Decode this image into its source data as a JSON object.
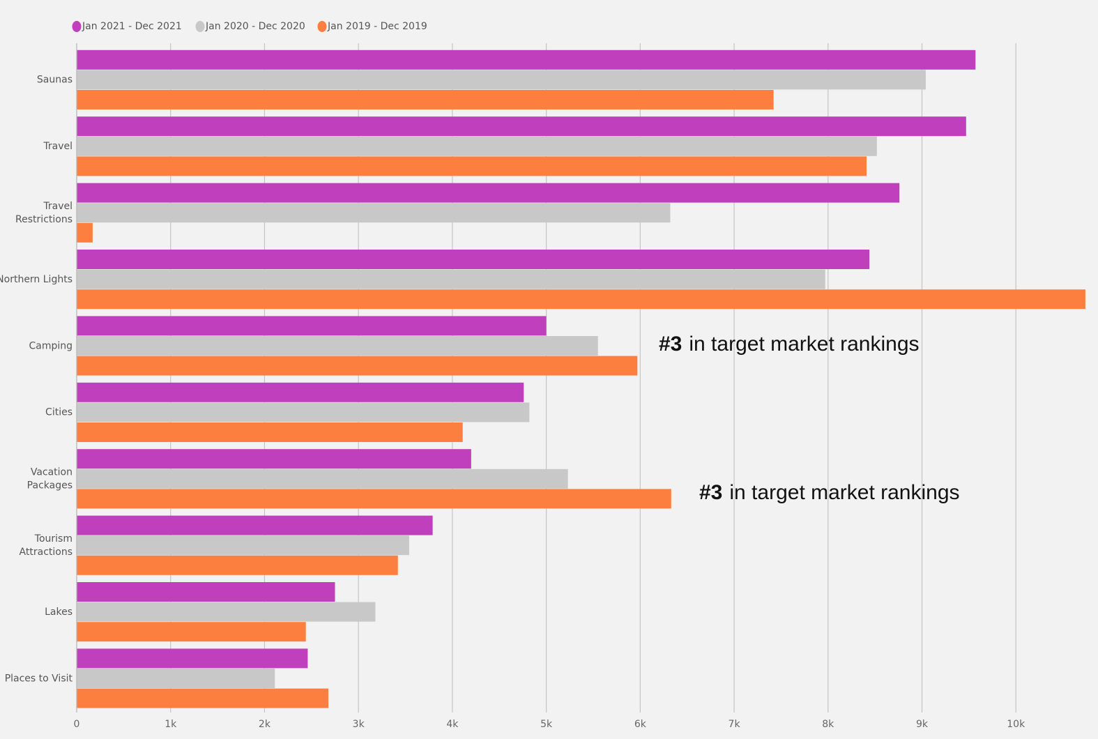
{
  "chart_data": {
    "type": "barh",
    "categories": [
      "Saunas",
      "Travel",
      "Travel\nRestrictions",
      "Northern Lights",
      "Camping",
      "Cities",
      "Vacation\nPackages",
      "Tourism\nAttractions",
      "Lakes",
      "Places to Visit"
    ],
    "series": [
      {
        "name": "Jan 2021 - Dec 2021",
        "color": "#c03fbc",
        "values": [
          9570,
          9470,
          8760,
          8440,
          5000,
          4760,
          4200,
          3790,
          2750,
          2460
        ]
      },
      {
        "name": "Jan 2020 - Dec 2020",
        "color": "#c8c8c8",
        "values": [
          9040,
          8520,
          6320,
          7970,
          5550,
          4820,
          5230,
          3540,
          3180,
          2110
        ]
      },
      {
        "name": "Jan 2019 - Dec 2019",
        "color": "#fd7f3f",
        "values": [
          7420,
          8410,
          170,
          10740,
          5970,
          4110,
          6330,
          3420,
          2440,
          2680
        ]
      }
    ],
    "xlim": [
      0,
      10800
    ],
    "xticks": [
      0,
      {
        "value": 1000,
        "label": "1k"
      },
      {
        "value": 2000,
        "label": "2k"
      },
      {
        "value": 3000,
        "label": "3k"
      },
      {
        "value": 4000,
        "label": "4k"
      },
      {
        "value": 5000,
        "label": "5k"
      },
      {
        "value": 6000,
        "label": "6k"
      },
      {
        "value": 7000,
        "label": "7k"
      },
      {
        "value": 8000,
        "label": "8k"
      },
      {
        "value": 9000,
        "label": "9k"
      },
      {
        "value": 10000,
        "label": "10k"
      }
    ],
    "grid": true,
    "legend": "top",
    "annotations": [
      {
        "emphasis": "#3",
        "text": "in target market rankings"
      },
      {
        "emphasis": "#3",
        "text": "in target market rankings"
      }
    ]
  }
}
